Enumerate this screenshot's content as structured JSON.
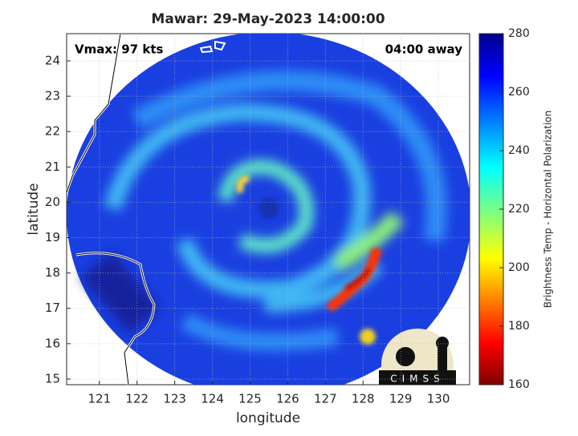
{
  "chart_data": {
    "type": "map",
    "title": "Mawar: 29-May-2023 14:00:00",
    "xlabel": "longitude",
    "ylabel": "latitude",
    "xlim": [
      120.13,
      130.83
    ],
    "ylim": [
      14.84,
      24.77
    ],
    "xticks": [
      121,
      122,
      123,
      124,
      125,
      126,
      127,
      128,
      129,
      130
    ],
    "yticks": [
      15,
      16,
      17,
      18,
      19,
      20,
      21,
      22,
      23,
      24
    ],
    "grid": true,
    "annotations": [
      "Vmax: 97 kts",
      "04:00 away"
    ],
    "logo": "CIMSS",
    "colorbar": {
      "label": "Brightness Temp - Horizontal Polarization",
      "lim": [
        160,
        280
      ],
      "ticks": [
        160,
        180,
        200,
        220,
        240,
        260,
        280
      ]
    }
  }
}
